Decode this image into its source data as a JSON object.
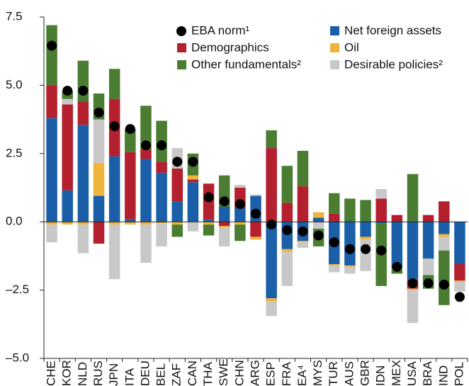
{
  "chart_data": {
    "type": "bar",
    "stacked": true,
    "categories": [
      "CHE",
      "KOR",
      "NLD",
      "RUS",
      "JPN",
      "ITA",
      "DEU",
      "BEL",
      "ZAF",
      "CAN",
      "THA",
      "SWE",
      "CHN",
      "ARG",
      "ESP",
      "FRA",
      "EA⁴",
      "MYS",
      "TUR",
      "AUS",
      "GBR",
      "IDN",
      "MEX",
      "USA",
      "BRA",
      "IND",
      "POL"
    ],
    "series": [
      {
        "name": "Net foreign assets",
        "color": "#1a5fa8",
        "values": [
          3.8,
          1.15,
          3.55,
          0.95,
          2.4,
          0.1,
          2.3,
          1.8,
          0.75,
          1.45,
          0.1,
          0.55,
          0.5,
          0.95,
          -2.8,
          -1.0,
          -0.7,
          0.15,
          -1.55,
          -1.6,
          -0.55,
          -0.05,
          -1.7,
          -2.1,
          -1.35,
          -0.45,
          -1.55
        ]
      },
      {
        "name": "Demographics",
        "color": "#b5202e",
        "values": [
          1.2,
          3.15,
          0.85,
          -0.8,
          2.1,
          2.45,
          0.35,
          0.4,
          1.2,
          0.1,
          1.3,
          -0.15,
          0.75,
          -0.55,
          2.7,
          0.7,
          1.3,
          0,
          0.3,
          0,
          0,
          0.85,
          0.25,
          -0.35,
          0.25,
          0.75,
          -0.6
        ]
      },
      {
        "name": "Oil",
        "color": "#f0b43c",
        "values": [
          -0.1,
          -0.1,
          -0.1,
          1.2,
          -0.1,
          -0.1,
          -0.1,
          -0.05,
          -0.1,
          0.15,
          -0.1,
          -0.05,
          -0.1,
          -0.1,
          -0.1,
          -0.1,
          -0.05,
          0.2,
          -0.05,
          -0.05,
          -0.1,
          0,
          -0.05,
          -0.05,
          0,
          -0.1,
          -0.05
        ]
      },
      {
        "name": "Desirable policies²",
        "color": "#c8c8c8",
        "values": [
          -0.65,
          0.2,
          -1.05,
          1.6,
          -2.0,
          0,
          -1.4,
          -0.85,
          0.75,
          -0.35,
          0,
          -0.7,
          0.1,
          0.05,
          -0.55,
          -1.25,
          -0.2,
          -0.25,
          -0.25,
          -0.25,
          -1.15,
          0.35,
          0,
          -1.2,
          -0.6,
          -0.5,
          -0.35
        ]
      },
      {
        "name": "Other fundamentals²",
        "color": "#4a7d32",
        "values": [
          2.2,
          0.3,
          1.5,
          0.95,
          1.1,
          0.85,
          1.6,
          1.5,
          -0.45,
          0.8,
          -0.4,
          1.15,
          -0.6,
          0,
          0.65,
          1.35,
          1.3,
          -0.65,
          0.75,
          0.85,
          0.8,
          -2.3,
          -0.15,
          1.75,
          -0.5,
          -2.0,
          0
        ]
      },
      {
        "name": "EBA norm¹",
        "type": "scatter",
        "color": "#000000",
        "values": [
          6.45,
          4.8,
          4.8,
          4.0,
          3.5,
          3.4,
          2.8,
          2.8,
          2.2,
          2.2,
          0.9,
          0.75,
          0.65,
          0.3,
          -0.1,
          -0.3,
          -0.35,
          -0.5,
          -0.75,
          -1.0,
          -1.0,
          -1.05,
          -1.65,
          -2.25,
          -2.25,
          -2.3,
          -2.75
        ]
      }
    ],
    "ylim": [
      -5,
      7.5
    ],
    "yticks": [
      {
        "value": -5,
        "label": "–5.0"
      },
      {
        "value": -2.5,
        "label": "–2.5"
      },
      {
        "value": 0,
        "label": "0.0"
      },
      {
        "value": 2.5,
        "label": "2.5"
      },
      {
        "value": 5,
        "label": "5.0"
      },
      {
        "value": 7.5,
        "label": "7.5"
      }
    ],
    "grid": false
  }
}
